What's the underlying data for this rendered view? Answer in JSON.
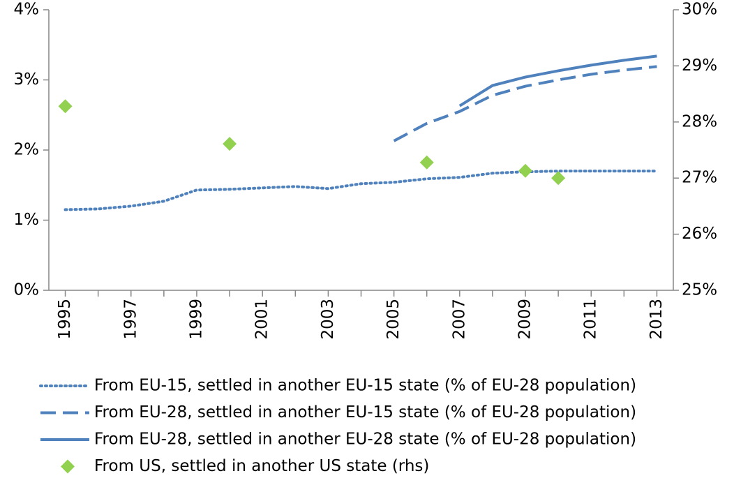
{
  "chart_data": {
    "type": "line",
    "x": [
      1995,
      1996,
      1997,
      1998,
      1999,
      2000,
      2001,
      2002,
      2003,
      2004,
      2005,
      2006,
      2007,
      2008,
      2009,
      2010,
      2011,
      2012,
      2013
    ],
    "xlim": [
      1994.5,
      2013.5
    ],
    "xticks": [
      1995,
      1997,
      1999,
      2001,
      2003,
      2005,
      2007,
      2009,
      2011,
      2013
    ],
    "ylim": [
      0,
      4
    ],
    "yticks": [
      {
        "value": 0,
        "label": "0%"
      },
      {
        "value": 1,
        "label": "1%"
      },
      {
        "value": 2,
        "label": "2%"
      },
      {
        "value": 3,
        "label": "3%"
      },
      {
        "value": 4,
        "label": "4%"
      }
    ],
    "y2lim": [
      25,
      30
    ],
    "y2ticks": [
      {
        "value": 25,
        "label": "25%"
      },
      {
        "value": 26,
        "label": "26%"
      },
      {
        "value": 27,
        "label": "27%"
      },
      {
        "value": 28,
        "label": "28%"
      },
      {
        "value": 29,
        "label": "29%"
      },
      {
        "value": 30,
        "label": "30%"
      }
    ],
    "legend": "bottom",
    "series": [
      {
        "name": "From EU-15, settled in another EU-15 state (% of EU-28 population)",
        "color": "#4f81bd",
        "style": "dotted",
        "values": [
          1.15,
          1.16,
          1.2,
          1.27,
          1.43,
          1.44,
          1.46,
          1.48,
          1.45,
          1.52,
          1.54,
          1.59,
          1.61,
          1.67,
          1.69,
          1.7,
          1.7,
          1.7,
          1.7
        ]
      },
      {
        "name": "From EU-28, settled in another EU-15 state (% of EU-28 population)",
        "color": "#4f81bd",
        "style": "dashed",
        "values": [
          null,
          null,
          null,
          null,
          null,
          null,
          null,
          null,
          null,
          null,
          2.13,
          2.38,
          2.55,
          2.78,
          2.91,
          3.0,
          3.08,
          3.14,
          3.19
        ]
      },
      {
        "name": "From EU-28, settled in another EU-28 state (% of EU-28 population)",
        "color": "#4f81bd",
        "style": "solid",
        "values": [
          null,
          null,
          null,
          null,
          null,
          null,
          null,
          null,
          null,
          null,
          null,
          null,
          2.63,
          2.92,
          3.04,
          3.13,
          3.21,
          3.28,
          3.34
        ]
      },
      {
        "name": "From US, settled in another US state (rhs)",
        "color": "#92d050",
        "style": "diamond",
        "axis": "y2",
        "values": [
          28.28,
          null,
          null,
          null,
          null,
          27.61,
          null,
          null,
          null,
          null,
          null,
          27.28,
          null,
          null,
          27.13,
          27.0,
          null,
          null,
          null
        ]
      }
    ]
  }
}
